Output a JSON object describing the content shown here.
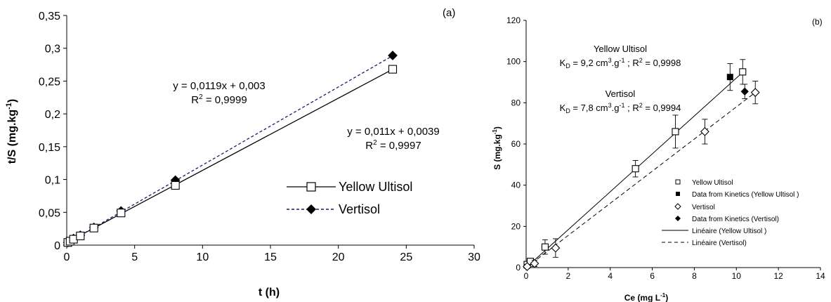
{
  "chart_data": [
    {
      "type": "scatter",
      "panel_label": "(a)",
      "xlabel": "t (h)",
      "ylabel": "t/S (mg.kg",
      "ylabel_sup": "-1",
      "ylabel_close": ")",
      "xlim": [
        0,
        30
      ],
      "ylim": [
        0,
        0.35
      ],
      "xticks": [
        0,
        5,
        10,
        15,
        20,
        25,
        30
      ],
      "xtick_labels": [
        "0",
        "5",
        "10",
        "15",
        "20",
        "25",
        "30"
      ],
      "yticks": [
        0,
        0.05,
        0.1,
        0.15,
        0.2,
        0.25,
        0.3,
        0.35
      ],
      "ytick_labels": [
        "0",
        "0,05",
        "0,1",
        "0,15",
        "0,2",
        "0,25",
        "0,3",
        "0,35"
      ],
      "grid": false,
      "legend_position": "center-right",
      "series": [
        {
          "name": "Yellow Ultisol",
          "marker": "open-square",
          "line": "solid",
          "color": "#000000",
          "x": [
            0.083,
            0.25,
            0.5,
            1,
            2,
            4,
            8,
            24
          ],
          "y": [
            0.004,
            0.006,
            0.009,
            0.014,
            0.026,
            0.049,
            0.091,
            0.268
          ],
          "fit": {
            "slope": 0.011,
            "intercept": 0.0039
          }
        },
        {
          "name": "Vertisol",
          "marker": "filled-diamond",
          "line": "dashed",
          "color": "#1a1a6e",
          "x": [
            0.083,
            0.25,
            0.5,
            1,
            2,
            4,
            8,
            24
          ],
          "y": [
            0.004,
            0.006,
            0.01,
            0.015,
            0.027,
            0.052,
            0.099,
            0.289
          ],
          "fit": {
            "slope": 0.0119,
            "intercept": 0.003
          }
        }
      ],
      "annotations": [
        {
          "line1": "y = 0,0119x + 0,003",
          "line2_pre": "R",
          "line2_sup": "2",
          "line2_post": " = 0,9999"
        },
        {
          "line1": "y = 0,011x + 0,0039",
          "line2_pre": "R",
          "line2_sup": "2",
          "line2_post": " = 0,9997"
        }
      ]
    },
    {
      "type": "scatter",
      "panel_label": "(b)",
      "xlabel": "Ce (mg L",
      "xlabel_sup": "-1",
      "xlabel_close": ")",
      "ylabel": "S (mg.kg",
      "ylabel_sup": "-1",
      "ylabel_close": ")",
      "xlim": [
        0,
        14
      ],
      "ylim": [
        0,
        120
      ],
      "xticks": [
        0,
        2,
        4,
        6,
        8,
        10,
        12,
        14
      ],
      "xtick_labels": [
        "0",
        "2",
        "4",
        "6",
        "8",
        "10",
        "12",
        "14"
      ],
      "yticks": [
        0,
        20,
        40,
        60,
        80,
        100,
        120
      ],
      "ytick_labels": [
        "0",
        "20",
        "40",
        "60",
        "80",
        "100",
        "120"
      ],
      "grid": false,
      "legend_position": "bottom-right",
      "series": [
        {
          "name": "Yellow Ultisol",
          "marker": "open-square",
          "color": "#000000",
          "x": [
            0.05,
            0.2,
            0.9,
            5.2,
            7.1,
            10.3
          ],
          "y": [
            1.5,
            3,
            10,
            48,
            66,
            95
          ],
          "err": [
            1.5,
            1.5,
            3.5,
            4,
            8,
            6
          ]
        },
        {
          "name": "Data from Kinetics (Yellow Ultisol )",
          "marker": "filled-square",
          "color": "#000000",
          "x": [
            9.7
          ],
          "y": [
            92.5
          ],
          "err": [
            6.5
          ]
        },
        {
          "name": "Vertisol",
          "marker": "open-diamond",
          "color": "#000000",
          "x": [
            0.05,
            0.4,
            1.4,
            8.5,
            10.9
          ],
          "y": [
            0.5,
            2,
            9.5,
            66,
            85
          ],
          "err": [
            1,
            1.5,
            4.5,
            6,
            5.5
          ]
        },
        {
          "name": "Data from Kinetics (Vertisol)",
          "marker": "filled-diamond",
          "color": "#000000",
          "x": [
            10.4
          ],
          "y": [
            85.5
          ],
          "err": [
            3.5
          ]
        },
        {
          "name": "Linéaire (Yellow Ultisol )",
          "line": "solid",
          "color": "#000000",
          "slope": 9.2
        },
        {
          "name": "Linéaire (Vertisol)",
          "line": "dashed",
          "color": "#000000",
          "slope": 7.8
        }
      ],
      "annotations": [
        {
          "title": "Yellow Ultisol",
          "k_pre": "K",
          "k_sub": "D",
          "k_val": " = 9,2 cm",
          "k_sup1": "3",
          "k_mid": ".g",
          "k_sup2": "-1",
          "k_post": " ; R",
          "k_sup3": "2",
          "k_end": " = 0,9998"
        },
        {
          "title": "Vertisol",
          "k_pre": "K",
          "k_sub": "D",
          "k_val": " = 7,8 cm",
          "k_sup1": "3",
          "k_mid": ".g",
          "k_sup2": "-1",
          "k_post": " ; R",
          "k_sup3": "2",
          "k_end": " = 0,9994"
        }
      ]
    }
  ]
}
